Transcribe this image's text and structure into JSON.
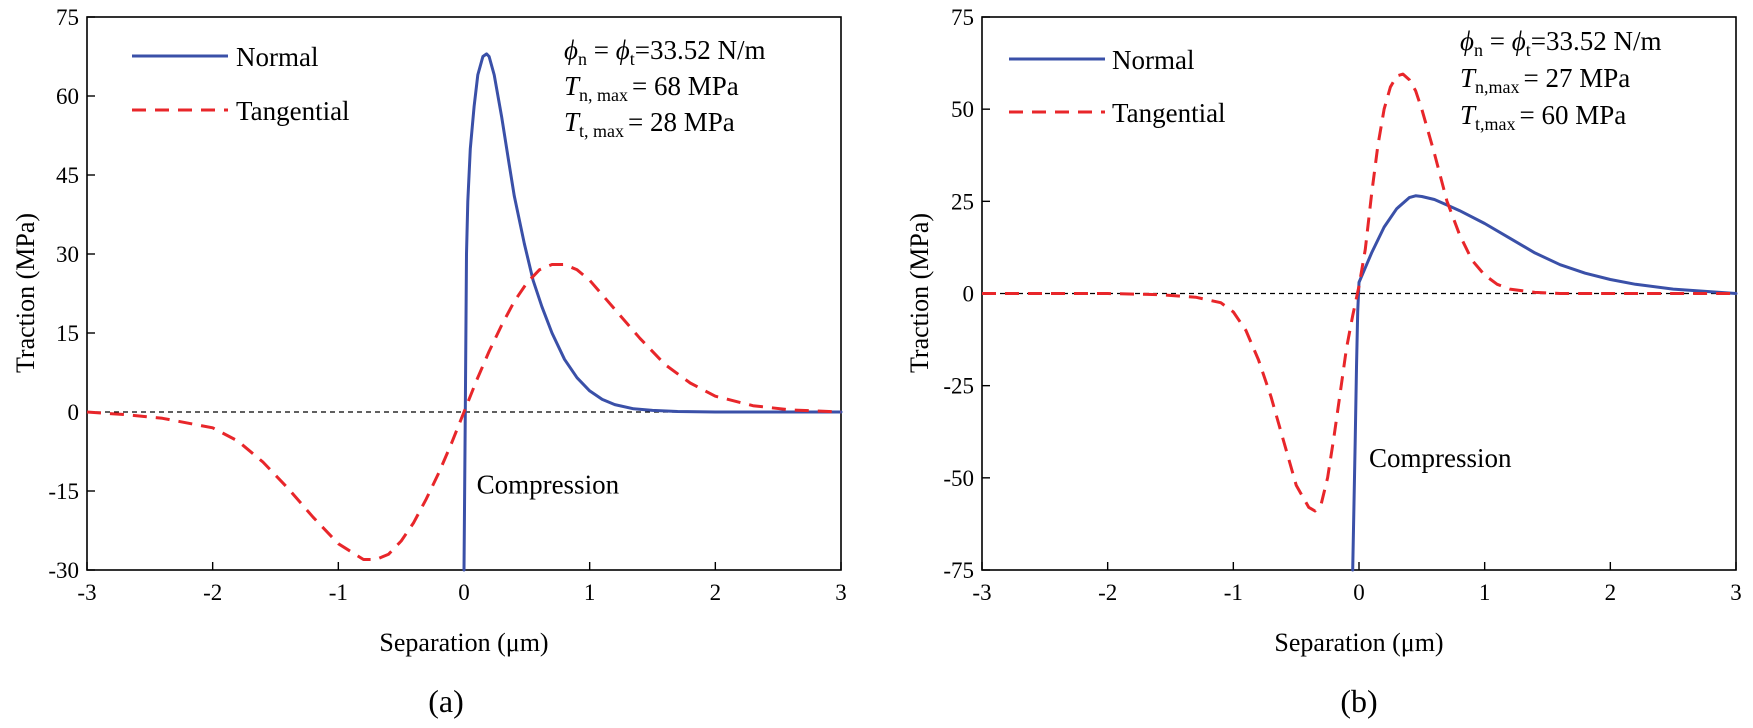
{
  "chart_data": [
    {
      "panel_label": "(a)",
      "type": "line",
      "xlabel": "Separation (μm)",
      "ylabel": "Traction (MPa)",
      "xlim": [
        -3,
        3
      ],
      "ylim": [
        -30,
        75
      ],
      "x_ticks": [
        -3,
        -2,
        -1,
        0,
        1,
        2,
        3
      ],
      "y_ticks": [
        -30,
        -15,
        0,
        15,
        30,
        45,
        60,
        75
      ],
      "legend": {
        "position": "top-left",
        "entries": [
          "Normal",
          "Tangential"
        ]
      },
      "params": {
        "phi_symbol": "ϕ",
        "phi_n_sub": "n",
        "phi_t_sub": "t",
        "phi_value": "=33.52 N/m",
        "T_symbol": "T",
        "Tn_sub": "n, max",
        "Tn_value": "= 68 MPa",
        "Tt_sub": "t, max",
        "Tt_value": "= 28 MPa"
      },
      "annotation": "Compression",
      "annotation_at": {
        "x": 0.1,
        "y": -15.5
      },
      "zero_line": "dashed",
      "series": [
        {
          "name": "Normal",
          "style": "solid",
          "color": "#3a50a8",
          "x": [
            0,
            0.01,
            0.02,
            0.03,
            0.05,
            0.08,
            0.11,
            0.15,
            0.18,
            0.2,
            0.24,
            0.3,
            0.36,
            0.4,
            0.48,
            0.55,
            0.62,
            0.7,
            0.8,
            0.9,
            1.0,
            1.1,
            1.2,
            1.35,
            1.5,
            1.7,
            2.0,
            2.5,
            3.0
          ],
          "y": [
            -30,
            0,
            30,
            40,
            50,
            58,
            64,
            67.5,
            68,
            67.5,
            64,
            56,
            47,
            41,
            32,
            25,
            20,
            15,
            10,
            6.5,
            4,
            2.4,
            1.4,
            0.6,
            0.3,
            0.1,
            0,
            0,
            0
          ]
        },
        {
          "name": "Tangential",
          "style": "dashed",
          "color": "#e8262a",
          "x": [
            -3,
            -2.7,
            -2.4,
            -2.0,
            -1.8,
            -1.6,
            -1.4,
            -1.2,
            -1.0,
            -0.8,
            -0.7,
            -0.6,
            -0.5,
            -0.4,
            -0.3,
            -0.2,
            -0.1,
            0,
            0.1,
            0.2,
            0.3,
            0.4,
            0.5,
            0.6,
            0.7,
            0.8,
            0.9,
            1.0,
            1.2,
            1.4,
            1.6,
            1.8,
            2.0,
            2.3,
            2.6,
            3.0
          ],
          "y": [
            0,
            -0.5,
            -1.2,
            -3,
            -5.5,
            -9.5,
            -14.5,
            -20,
            -25,
            -28,
            -28,
            -27,
            -24.5,
            -21,
            -16.5,
            -11.5,
            -6,
            0,
            6,
            11.5,
            16.5,
            21,
            24.5,
            27,
            28,
            28,
            27,
            25,
            19.5,
            14,
            9,
            5.5,
            3,
            1.2,
            0.4,
            0
          ]
        }
      ]
    },
    {
      "panel_label": "(b)",
      "type": "line",
      "xlabel": "Separation (μm)",
      "ylabel": "Traction (MPa)",
      "xlim": [
        -3,
        3
      ],
      "ylim": [
        -75,
        75
      ],
      "x_ticks": [
        -3,
        -2,
        -1,
        0,
        1,
        2,
        3
      ],
      "y_ticks": [
        -75,
        -50,
        -25,
        0,
        25,
        50,
        75
      ],
      "legend": {
        "position": "top-left",
        "entries": [
          "Normal",
          "Tangential"
        ]
      },
      "params": {
        "phi_symbol": "ϕ",
        "phi_n_sub": "n",
        "phi_t_sub": "t",
        "phi_value": "=33.52 N/m",
        "T_symbol": "T",
        "Tn_sub": "n,max",
        "Tn_value": "= 27 MPa",
        "Tt_sub": "t,max",
        "Tt_value": "= 60 MPa"
      },
      "annotation": "Compression",
      "annotation_at": {
        "x": 0.08,
        "y": -47
      },
      "zero_line": "dashed",
      "series": [
        {
          "name": "Normal",
          "style": "solid",
          "color": "#3a50a8",
          "x": [
            -0.05,
            -0.03,
            -0.02,
            -0.01,
            0,
            0.05,
            0.1,
            0.2,
            0.3,
            0.4,
            0.45,
            0.5,
            0.6,
            0.7,
            0.8,
            1.0,
            1.2,
            1.4,
            1.6,
            1.8,
            2.0,
            2.2,
            2.5,
            2.8,
            3.0
          ],
          "y": [
            -75,
            -40,
            -20,
            -5,
            3,
            7,
            11,
            18,
            23,
            26,
            26.5,
            26.3,
            25.5,
            24,
            22.5,
            19,
            15,
            11,
            7.8,
            5.5,
            3.8,
            2.5,
            1.2,
            0.5,
            0
          ]
        },
        {
          "name": "Tangential",
          "style": "dashed",
          "color": "#e8262a",
          "x": [
            -3,
            -2.5,
            -2,
            -1.6,
            -1.3,
            -1.1,
            -1.0,
            -0.9,
            -0.8,
            -0.7,
            -0.6,
            -0.5,
            -0.4,
            -0.35,
            -0.3,
            -0.25,
            -0.2,
            -0.15,
            -0.1,
            -0.05,
            0,
            0.05,
            0.1,
            0.15,
            0.2,
            0.25,
            0.3,
            0.35,
            0.4,
            0.45,
            0.5,
            0.6,
            0.7,
            0.8,
            0.9,
            1.0,
            1.1,
            1.2,
            1.4,
            1.6,
            2.0,
            3.0
          ],
          "y": [
            0,
            0,
            0,
            -0.3,
            -1,
            -2.5,
            -5,
            -10,
            -18,
            -28,
            -40,
            -52,
            -58,
            -59,
            -57,
            -50,
            -39,
            -27,
            -15,
            -6,
            2,
            12,
            27,
            40,
            50,
            56,
            59,
            59.5,
            58,
            55,
            50,
            38,
            25,
            16,
            9,
            5,
            2.5,
            1.2,
            0.3,
            0,
            0,
            0
          ]
        }
      ]
    }
  ]
}
